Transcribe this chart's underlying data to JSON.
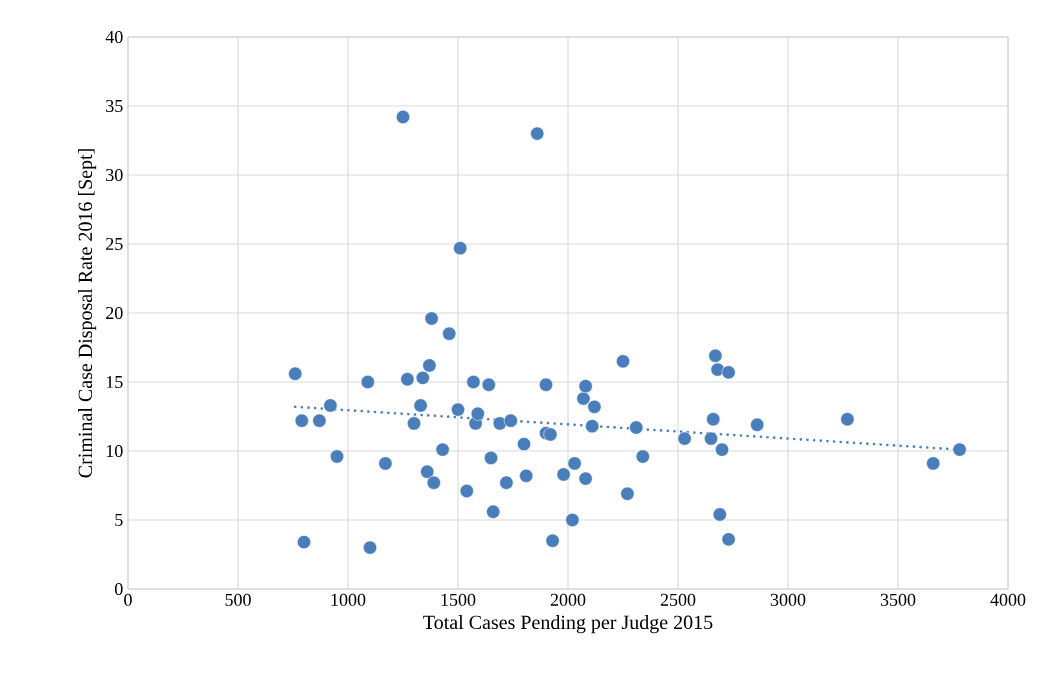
{
  "chart_data": {
    "type": "scatter",
    "xlabel": "Total Cases Pending per Judge 2015",
    "ylabel": "Criminal Case Disposal Rate  2016 [Sept]",
    "xlim": [
      0,
      4000
    ],
    "ylim": [
      0,
      40
    ],
    "xticks": [
      0,
      500,
      1000,
      1500,
      2000,
      2500,
      3000,
      3500,
      4000
    ],
    "yticks": [
      0,
      5,
      10,
      15,
      20,
      25,
      30,
      35,
      40
    ],
    "grid": true,
    "series": [
      {
        "color": "#4a7ebb",
        "marker": "circle",
        "x": [
          760,
          790,
          800,
          870,
          920,
          950,
          1090,
          1100,
          1170,
          1250,
          1270,
          1300,
          1330,
          1340,
          1360,
          1370,
          1380,
          1390,
          1430,
          1460,
          1500,
          1510,
          1540,
          1570,
          1580,
          1590,
          1640,
          1650,
          1660,
          1690,
          1720,
          1740,
          1800,
          1810,
          1860,
          1900,
          1900,
          1920,
          1930,
          1980,
          2020,
          2030,
          2070,
          2080,
          2080,
          2110,
          2120,
          2250,
          2270,
          2310,
          2340,
          2530,
          2650,
          2660,
          2670,
          2680,
          2690,
          2700,
          2730,
          2730,
          2860,
          3270,
          3660,
          3780
        ],
        "values": [
          15.6,
          12.2,
          3.4,
          12.2,
          13.3,
          9.6,
          15.0,
          3.0,
          9.1,
          34.2,
          15.2,
          12.0,
          13.3,
          15.3,
          8.5,
          16.2,
          19.6,
          7.7,
          10.1,
          18.5,
          13.0,
          24.7,
          7.1,
          15.0,
          12.0,
          12.7,
          14.8,
          9.5,
          5.6,
          12.0,
          7.7,
          12.2,
          10.5,
          8.2,
          33.0,
          14.8,
          11.3,
          11.2,
          3.5,
          8.3,
          5.0,
          9.1,
          13.8,
          14.7,
          8.0,
          11.8,
          13.2,
          16.5,
          6.9,
          11.7,
          9.6,
          10.9,
          10.9,
          12.3,
          16.9,
          15.9,
          5.4,
          10.1,
          3.6,
          15.7,
          11.9,
          12.3,
          9.1,
          10.1
        ]
      },
      {
        "type": "line",
        "color": "#4a7ebb",
        "marker": "none",
        "line_style": "dotted",
        "x": [
          760,
          3780
        ],
        "values": [
          13.2,
          10.1
        ]
      }
    ]
  }
}
